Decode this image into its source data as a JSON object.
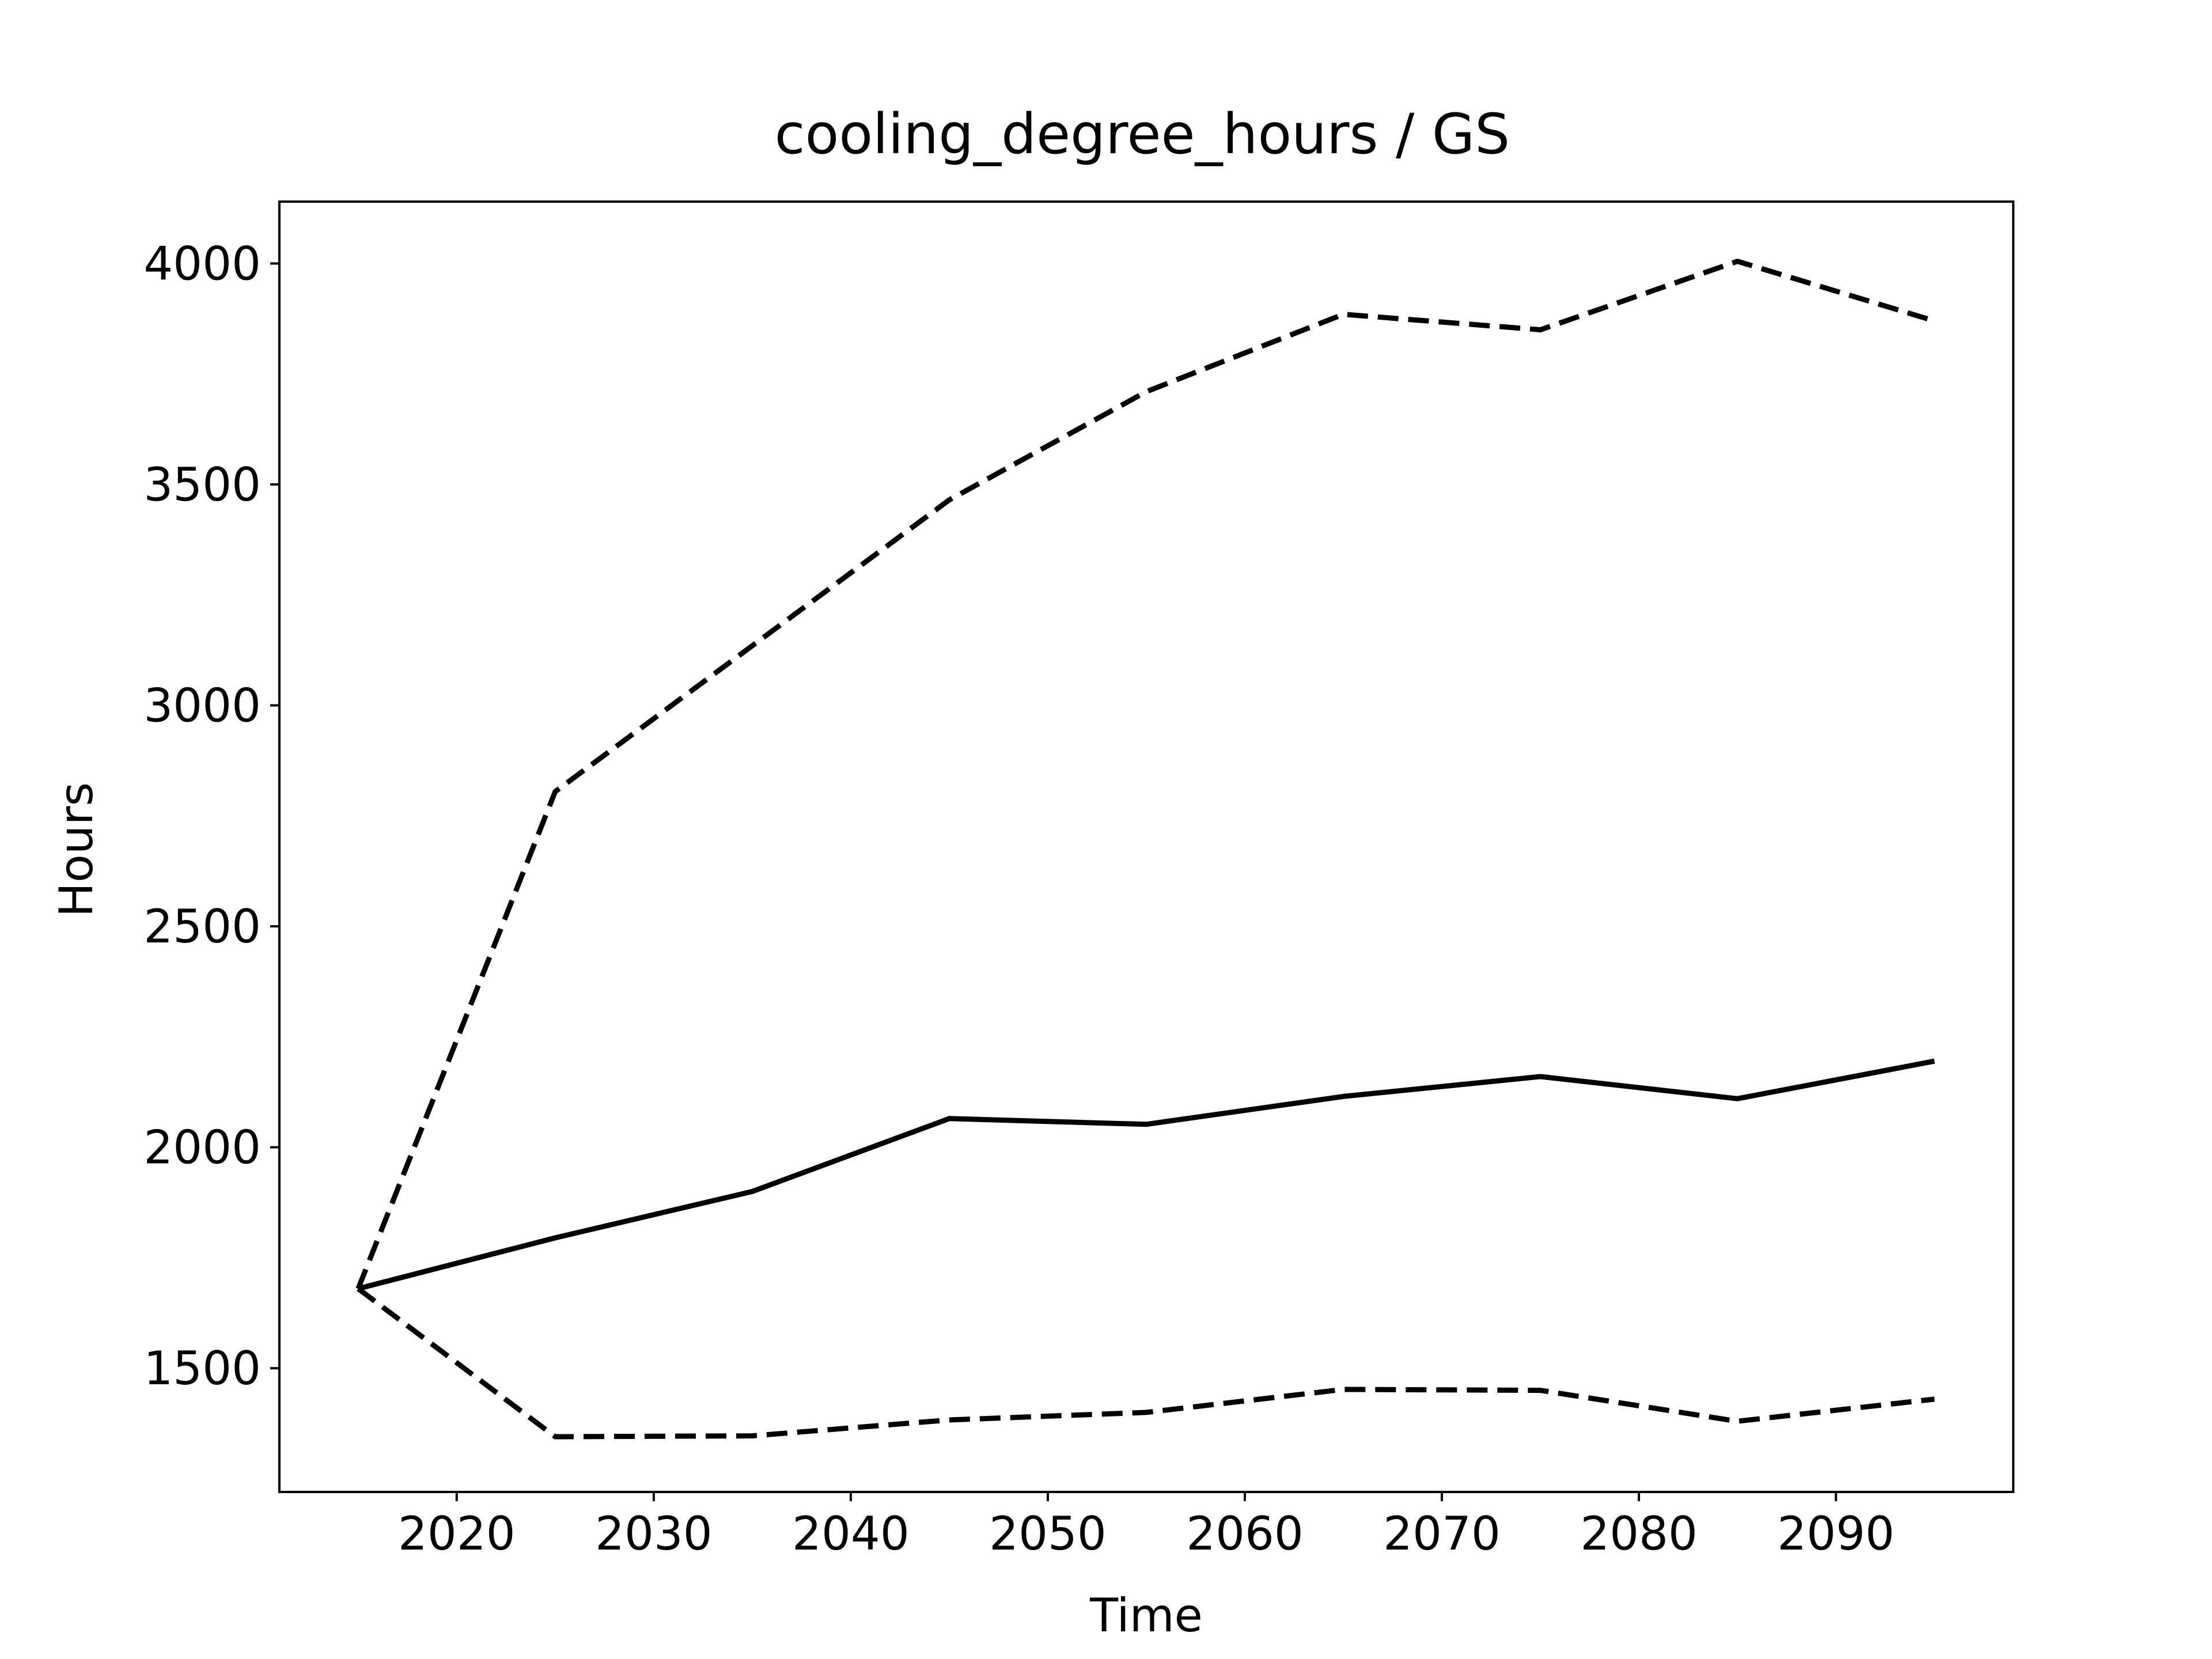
{
  "chart_data": {
    "type": "line",
    "title": "cooling_degree_hours / GS",
    "xlabel": "Time",
    "ylabel": "Hours",
    "xlim": [
      2011,
      2099
    ],
    "ylim": [
      1220,
      4140
    ],
    "x_ticks": [
      2020,
      2030,
      2040,
      2050,
      2060,
      2070,
      2080,
      2090
    ],
    "y_ticks": [
      1500,
      2000,
      2500,
      3000,
      3500,
      4000
    ],
    "x_tick_labels": [
      "2020",
      "2030",
      "2040",
      "2050",
      "2060",
      "2070",
      "2080",
      "2090"
    ],
    "y_tick_labels": [
      "1500",
      "2000",
      "2500",
      "3000",
      "3500",
      "4000"
    ],
    "grid": false,
    "legend": false,
    "x": [
      2015,
      2025,
      2035,
      2045,
      2055,
      2065,
      2075,
      2085,
      2095
    ],
    "series": [
      {
        "style": "dashed",
        "color": "#000000",
        "values": [
          1680,
          2805,
          3135,
          3465,
          3710,
          3885,
          3850,
          4005,
          3870
        ]
      },
      {
        "style": "solid",
        "color": "#000000",
        "values": [
          1680,
          1795,
          1900,
          2065,
          2052,
          2115,
          2160,
          2110,
          2195
        ]
      },
      {
        "style": "dashed",
        "color": "#000000",
        "values": [
          1680,
          1345,
          1347,
          1383,
          1400,
          1452,
          1450,
          1380,
          1430
        ]
      }
    ]
  }
}
